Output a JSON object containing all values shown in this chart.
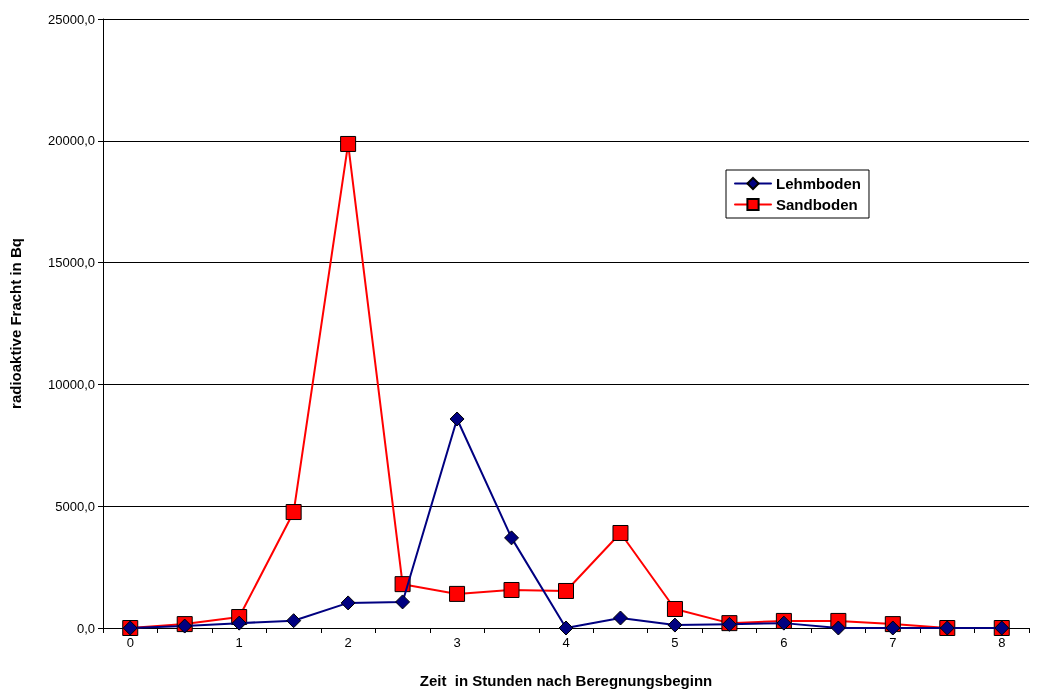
{
  "chart_data": {
    "type": "line",
    "xlabel": "Zeit  in Stunden nach Beregnungsbeginn",
    "ylabel": "radioaktive Fracht in Bq",
    "categories": [
      "0",
      null,
      "1",
      null,
      "2",
      null,
      "3",
      null,
      "4",
      null,
      "5",
      null,
      "6",
      null,
      "7",
      null,
      "8"
    ],
    "series": [
      {
        "name": "Lehmboden",
        "color": "#000080",
        "marker": "diamond",
        "values": [
          0,
          80,
          200,
          300,
          1030,
          1070,
          8580,
          3700,
          0,
          410,
          120,
          150,
          200,
          0,
          0,
          0,
          0
        ]
      },
      {
        "name": "Sandboden",
        "color": "#ff0000",
        "marker": "square",
        "values": [
          0,
          160,
          450,
          4760,
          19870,
          1800,
          1400,
          1560,
          1520,
          3900,
          780,
          200,
          290,
          290,
          160,
          0,
          0
        ]
      }
    ],
    "ylim": [
      0,
      25000
    ],
    "yticks": [
      {
        "value": 0,
        "label": "0,0"
      },
      {
        "value": 5000,
        "label": "5000,0"
      },
      {
        "value": 10000,
        "label": "10000,0"
      },
      {
        "value": 15000,
        "label": "15000,0"
      },
      {
        "value": 20000,
        "label": "20000,0"
      },
      {
        "value": 25000,
        "label": "25000,0"
      }
    ],
    "grid": "y",
    "legend": "top right",
    "line_style": "solid"
  }
}
